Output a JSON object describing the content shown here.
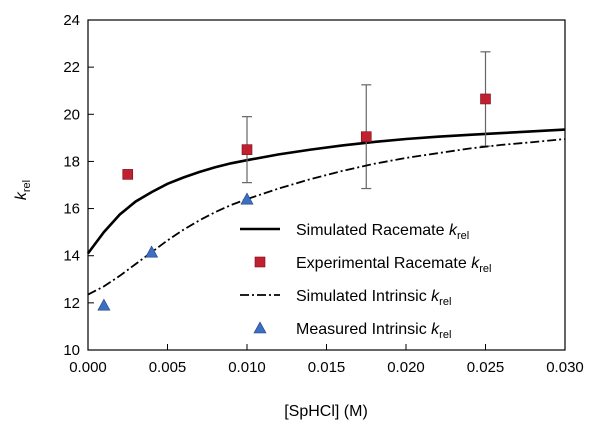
{
  "chart_data": {
    "type": "scatter",
    "xlabel": "[SpHCl] (M)",
    "ylabel_main": "k",
    "ylabel_sub": "rel",
    "xlim": [
      0.0,
      0.03
    ],
    "ylim": [
      10,
      24
    ],
    "x_ticks": [
      "0.000",
      "0.005",
      "0.010",
      "0.015",
      "0.020",
      "0.025",
      "0.030"
    ],
    "y_ticks": [
      "10",
      "12",
      "14",
      "16",
      "18",
      "20",
      "22",
      "24"
    ],
    "grid": false,
    "legend_position": "bottom-right",
    "series": [
      {
        "name": "Simulated Racemate k rel",
        "label_main": "Simulated Racemate ",
        "label_italic": "k",
        "label_sub": "rel",
        "kind": "line",
        "style": "solid",
        "color": "#000000",
        "points": [
          [
            0.0,
            14.1
          ],
          [
            0.001,
            15.0
          ],
          [
            0.002,
            15.75
          ],
          [
            0.003,
            16.3
          ],
          [
            0.004,
            16.7
          ],
          [
            0.005,
            17.05
          ],
          [
            0.006,
            17.32
          ],
          [
            0.007,
            17.55
          ],
          [
            0.008,
            17.75
          ],
          [
            0.009,
            17.92
          ],
          [
            0.01,
            18.05
          ],
          [
            0.012,
            18.3
          ],
          [
            0.014,
            18.5
          ],
          [
            0.016,
            18.68
          ],
          [
            0.018,
            18.83
          ],
          [
            0.02,
            18.95
          ],
          [
            0.022,
            19.05
          ],
          [
            0.024,
            19.13
          ],
          [
            0.026,
            19.2
          ],
          [
            0.028,
            19.28
          ],
          [
            0.03,
            19.35
          ]
        ]
      },
      {
        "name": "Experimental Racemate k rel",
        "label_main": "Experimental Racemate ",
        "label_italic": "k",
        "label_sub": "rel",
        "kind": "scatter",
        "marker": "square",
        "color": "#c0202f",
        "points": [
          {
            "x": 0.0025,
            "y": 17.45
          },
          {
            "x": 0.01,
            "y": 18.5,
            "err_low": 17.1,
            "err_high": 19.9
          },
          {
            "x": 0.0175,
            "y": 19.05,
            "err_low": 16.85,
            "err_high": 21.25
          },
          {
            "x": 0.025,
            "y": 20.65,
            "err_low": 18.65,
            "err_high": 22.65
          }
        ]
      },
      {
        "name": "Simulated Intrinsic k rel",
        "label_main": "Simulated Intrinsic ",
        "label_italic": "k",
        "label_sub": "rel",
        "kind": "line",
        "style": "dashdot",
        "color": "#000000",
        "points": [
          [
            0.0,
            12.35
          ],
          [
            0.001,
            12.7
          ],
          [
            0.002,
            13.15
          ],
          [
            0.003,
            13.65
          ],
          [
            0.004,
            14.15
          ],
          [
            0.005,
            14.65
          ],
          [
            0.006,
            15.1
          ],
          [
            0.007,
            15.5
          ],
          [
            0.008,
            15.85
          ],
          [
            0.009,
            16.15
          ],
          [
            0.01,
            16.4
          ],
          [
            0.012,
            16.85
          ],
          [
            0.014,
            17.25
          ],
          [
            0.016,
            17.6
          ],
          [
            0.018,
            17.9
          ],
          [
            0.02,
            18.15
          ],
          [
            0.022,
            18.35
          ],
          [
            0.024,
            18.55
          ],
          [
            0.026,
            18.7
          ],
          [
            0.028,
            18.82
          ],
          [
            0.03,
            18.95
          ]
        ]
      },
      {
        "name": "Measured Intrinsic k rel",
        "label_main": "Measured Intrinsic ",
        "label_italic": "k",
        "label_sub": "rel",
        "kind": "scatter",
        "marker": "triangle",
        "color": "#3a6fc4",
        "points": [
          {
            "x": 0.001,
            "y": 11.9
          },
          {
            "x": 0.004,
            "y": 14.15
          },
          {
            "x": 0.01,
            "y": 16.4
          }
        ]
      }
    ]
  }
}
